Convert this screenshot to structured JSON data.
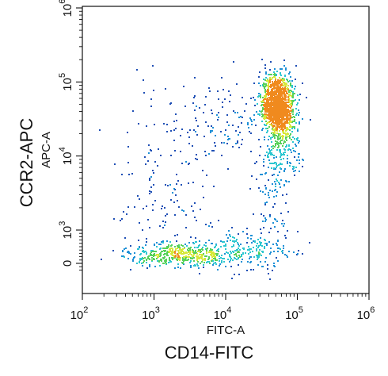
{
  "figure": {
    "outer_xlabel": "CD14-FITC",
    "outer_ylabel": "CCR2-APC"
  },
  "chart_data": {
    "type": "scatter",
    "subtype": "flow-cytometry-density-dot-plot",
    "xlabel": "FITC-A",
    "ylabel": "APC-A",
    "x_scale": "log",
    "y_scale": "biexponential",
    "xlim": [
      100,
      1000000
    ],
    "ylim": [
      -300,
      1000000
    ],
    "x_ticks": [
      {
        "value": 100,
        "base": "10",
        "exp": "2"
      },
      {
        "value": 1000,
        "base": "10",
        "exp": "3"
      },
      {
        "value": 10000,
        "base": "10",
        "exp": "4"
      },
      {
        "value": 100000,
        "base": "10",
        "exp": "5"
      },
      {
        "value": 1000000,
        "base": "10",
        "exp": "6"
      }
    ],
    "y_ticks": [
      {
        "value": 0,
        "base": "0",
        "exp": ""
      },
      {
        "value": 1000,
        "base": "10",
        "exp": "3"
      },
      {
        "value": 10000,
        "base": "10",
        "exp": "4"
      },
      {
        "value": 100000,
        "base": "10",
        "exp": "5"
      },
      {
        "value": 1000000,
        "base": "10",
        "exp": "6"
      }
    ],
    "grid": false,
    "legend": "none",
    "density_colors": [
      "#1f4fb5",
      "#1e90d6",
      "#2cc7d0",
      "#58d15a",
      "#d6e83a",
      "#f08a1e"
    ],
    "populations": [
      {
        "x": 52000,
        "y": 50000,
        "count": 1400,
        "x_spread": 0.11,
        "y_spread": 0.2
      },
      {
        "x": 60000,
        "y": 15000,
        "count": 220,
        "x_spread": 0.12,
        "y_spread": 0.25
      },
      {
        "x": 2500,
        "y": 280,
        "count": 520,
        "x_spread": 0.42,
        "y_spread": 0.28
      },
      {
        "x": 20000,
        "y": 450,
        "count": 180,
        "x_spread": 0.35,
        "y_spread": 0.35
      },
      {
        "x": 12000,
        "y": 30000,
        "count": 120,
        "x_spread": 0.35,
        "y_spread": 0.28
      },
      {
        "x": 1500,
        "y": 4000,
        "count": 160,
        "x_spread": 0.35,
        "y_spread": 0.6
      },
      {
        "x": 45000,
        "y": 2500,
        "count": 90,
        "x_spread": 0.12,
        "y_spread": 0.45
      }
    ]
  }
}
